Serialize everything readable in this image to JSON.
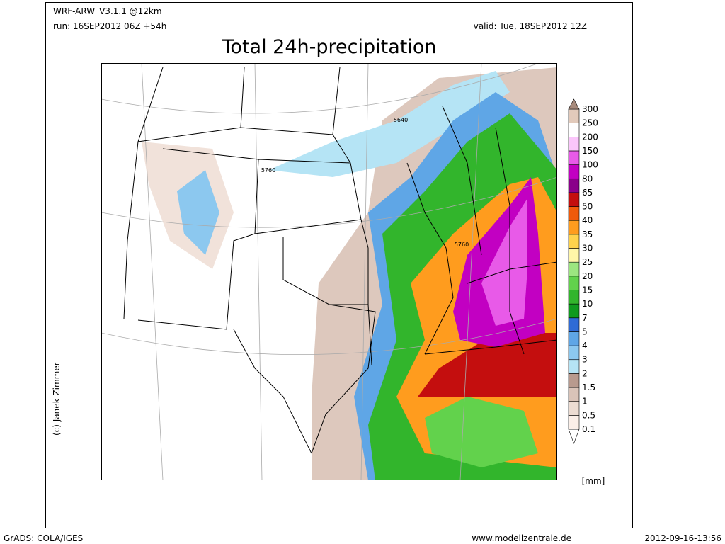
{
  "header": {
    "model": "WRF-ARW_V3.1.1 @12km",
    "run": "run: 16SEP2012 06Z +54h",
    "valid": "valid: Tue, 18SEP2012 12Z",
    "title": "Total 24h-precipitation"
  },
  "map": {
    "contour_labels": [
      "5640",
      "5760",
      "5760"
    ],
    "credit": "(c) Janek Zimmer"
  },
  "legend": {
    "labels": [
      "0.1",
      "0.5",
      "1",
      "1.5",
      "2",
      "3",
      "4",
      "5",
      "7",
      "10",
      "15",
      "20",
      "25",
      "30",
      "35",
      "40",
      "50",
      "65",
      "80",
      "100",
      "150",
      "200",
      "250",
      "300"
    ],
    "colors": [
      "#ffffff",
      "#fbefe8",
      "#ecdcd2",
      "#d9c3b8",
      "#b89a8e",
      "#b5e4f5",
      "#8cc8ef",
      "#5fa6e6",
      "#2f6bd6",
      "#0f9a1e",
      "#32b52c",
      "#62d24c",
      "#9ce680",
      "#fff6a8",
      "#ffd24c",
      "#ff9c1e",
      "#f05a0a",
      "#c40e0e",
      "#8a008a",
      "#c200c2",
      "#e85ae8",
      "#fbc6fb",
      "#ffffff",
      "#e2cabb",
      "#a88b7c"
    ],
    "unit": "[mm]"
  },
  "footer": {
    "software": "GrADS: COLA/IGES",
    "website": "www.modellzentrale.de",
    "timestamp": "2012-09-16-13:56"
  }
}
